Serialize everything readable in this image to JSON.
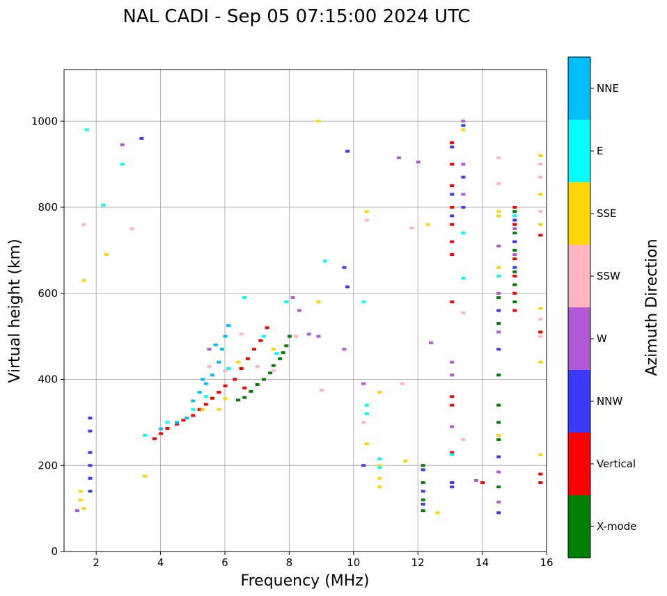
{
  "chart_data": {
    "type": "scatter",
    "title": "NAL CADI - Sep 05 07:15:00 2024 UTC",
    "xlabel": "Frequency (MHz)",
    "ylabel": "Virtual height (km)",
    "xlim": [
      1,
      16
    ],
    "ylim": [
      0,
      1120
    ],
    "xticks": [
      2,
      4,
      6,
      8,
      10,
      12,
      14,
      16
    ],
    "yticks": [
      0,
      200,
      400,
      600,
      800,
      1000
    ],
    "grid": true,
    "colorbar": {
      "label": "Azimuth Direction",
      "categories": [
        {
          "name": "X-mode",
          "color": "#008000"
        },
        {
          "name": "Vertical",
          "color": "#ff0000"
        },
        {
          "name": "NNW",
          "color": "#3a3aff"
        },
        {
          "name": "W",
          "color": "#b25ad6"
        },
        {
          "name": "SSW",
          "color": "#ffb6c1"
        },
        {
          "name": "SSE",
          "color": "#ffd700"
        },
        {
          "name": "E",
          "color": "#00ffff"
        },
        {
          "name": "NNE",
          "color": "#00bfff"
        }
      ]
    },
    "series": [
      {
        "name": "X-mode",
        "points": [
          [
            6.4,
            352
          ],
          [
            6.6,
            358
          ],
          [
            6.8,
            372
          ],
          [
            7.0,
            388
          ],
          [
            7.2,
            400
          ],
          [
            7.4,
            415
          ],
          [
            7.5,
            432
          ],
          [
            7.7,
            448
          ],
          [
            7.8,
            462
          ],
          [
            7.9,
            478
          ],
          [
            8.0,
            500
          ],
          [
            12.15,
            200
          ],
          [
            12.15,
            160
          ],
          [
            12.15,
            120
          ],
          [
            12.15,
            95
          ],
          [
            14.5,
            590
          ],
          [
            14.5,
            530
          ],
          [
            14.5,
            410
          ],
          [
            14.5,
            340
          ],
          [
            14.5,
            300
          ],
          [
            14.5,
            260
          ],
          [
            14.5,
            150
          ],
          [
            15.0,
            790
          ],
          [
            15.0,
            740
          ],
          [
            15.0,
            700
          ],
          [
            15.0,
            650
          ],
          [
            15.0,
            620
          ],
          [
            15.0,
            580
          ]
        ]
      },
      {
        "name": "Vertical",
        "points": [
          [
            3.8,
            262
          ],
          [
            4.0,
            274
          ],
          [
            4.2,
            286
          ],
          [
            4.5,
            296
          ],
          [
            4.7,
            305
          ],
          [
            5.0,
            316
          ],
          [
            5.2,
            330
          ],
          [
            5.4,
            342
          ],
          [
            5.6,
            356
          ],
          [
            5.8,
            370
          ],
          [
            6.0,
            385
          ],
          [
            6.3,
            400
          ],
          [
            6.5,
            425
          ],
          [
            6.7,
            448
          ],
          [
            6.9,
            470
          ],
          [
            7.1,
            490
          ],
          [
            6.6,
            380
          ],
          [
            7.3,
            520
          ],
          [
            13.05,
            950
          ],
          [
            13.05,
            900
          ],
          [
            13.05,
            850
          ],
          [
            13.05,
            800
          ],
          [
            13.05,
            760
          ],
          [
            13.05,
            720
          ],
          [
            13.05,
            690
          ],
          [
            13.05,
            580
          ],
          [
            13.05,
            360
          ],
          [
            13.05,
            340
          ],
          [
            13.05,
            230
          ],
          [
            13.05,
            160
          ],
          [
            14.0,
            160
          ],
          [
            15.0,
            800
          ],
          [
            15.0,
            760
          ],
          [
            15.0,
            720
          ],
          [
            15.0,
            680
          ],
          [
            15.0,
            640
          ],
          [
            15.0,
            600
          ],
          [
            15.0,
            560
          ],
          [
            15.8,
            735
          ],
          [
            15.8,
            510
          ],
          [
            15.8,
            180
          ],
          [
            15.8,
            160
          ]
        ]
      },
      {
        "name": "NNW",
        "points": [
          [
            1.8,
            310
          ],
          [
            1.8,
            280
          ],
          [
            1.8,
            230
          ],
          [
            1.8,
            200
          ],
          [
            1.8,
            170
          ],
          [
            1.8,
            140
          ],
          [
            3.4,
            960
          ],
          [
            9.8,
            930
          ],
          [
            9.7,
            660
          ],
          [
            9.8,
            615
          ],
          [
            10.3,
            200
          ],
          [
            12.15,
            190
          ],
          [
            12.15,
            140
          ],
          [
            12.15,
            110
          ],
          [
            13.05,
            940
          ],
          [
            13.05,
            830
          ],
          [
            13.05,
            780
          ],
          [
            13.05,
            160
          ],
          [
            13.05,
            150
          ],
          [
            13.4,
            990
          ],
          [
            13.4,
            870
          ],
          [
            13.4,
            800
          ],
          [
            14.5,
            560
          ],
          [
            14.5,
            470
          ],
          [
            14.5,
            220
          ],
          [
            14.5,
            90
          ],
          [
            15.0,
            770
          ],
          [
            15.0,
            720
          ],
          [
            15.0,
            660
          ]
        ]
      },
      {
        "name": "W",
        "points": [
          [
            1.4,
            95
          ],
          [
            2.8,
            945
          ],
          [
            5.5,
            470
          ],
          [
            8.1,
            590
          ],
          [
            8.3,
            560
          ],
          [
            8.6,
            505
          ],
          [
            8.9,
            500
          ],
          [
            9.7,
            470
          ],
          [
            10.3,
            390
          ],
          [
            11.4,
            915
          ],
          [
            12.0,
            905
          ],
          [
            12.4,
            485
          ],
          [
            13.05,
            440
          ],
          [
            13.05,
            410
          ],
          [
            13.05,
            290
          ],
          [
            13.4,
            1000
          ],
          [
            13.4,
            900
          ],
          [
            13.4,
            830
          ],
          [
            13.8,
            165
          ],
          [
            14.5,
            710
          ],
          [
            14.5,
            600
          ],
          [
            14.5,
            510
          ],
          [
            14.5,
            185
          ],
          [
            14.5,
            115
          ],
          [
            15.0,
            750
          ],
          [
            15.0,
            690
          ]
        ]
      },
      {
        "name": "SSW",
        "points": [
          [
            1.6,
            760
          ],
          [
            3.1,
            750
          ],
          [
            5.5,
            430
          ],
          [
            6.0,
            420
          ],
          [
            6.5,
            505
          ],
          [
            7.0,
            430
          ],
          [
            7.5,
            420
          ],
          [
            8.2,
            500
          ],
          [
            9.0,
            375
          ],
          [
            10.3,
            300
          ],
          [
            10.4,
            770
          ],
          [
            11.5,
            390
          ],
          [
            11.8,
            752
          ],
          [
            13.4,
            555
          ],
          [
            13.4,
            260
          ],
          [
            14.5,
            855
          ],
          [
            14.5,
            915
          ],
          [
            15.8,
            920
          ],
          [
            15.8,
            900
          ],
          [
            15.8,
            870
          ],
          [
            15.8,
            830
          ],
          [
            15.8,
            790
          ],
          [
            15.8,
            540
          ],
          [
            15.8,
            500
          ]
        ]
      },
      {
        "name": "SSE",
        "points": [
          [
            1.5,
            140
          ],
          [
            1.5,
            120
          ],
          [
            1.6,
            100
          ],
          [
            1.6,
            630
          ],
          [
            2.3,
            690
          ],
          [
            3.5,
            175
          ],
          [
            5.3,
            330
          ],
          [
            5.8,
            330
          ],
          [
            6.0,
            355
          ],
          [
            6.4,
            440
          ],
          [
            7.5,
            470
          ],
          [
            8.9,
            1000
          ],
          [
            8.9,
            580
          ],
          [
            10.4,
            790
          ],
          [
            10.4,
            250
          ],
          [
            10.8,
            200
          ],
          [
            10.8,
            170
          ],
          [
            10.8,
            150
          ],
          [
            10.8,
            370
          ],
          [
            11.6,
            210
          ],
          [
            12.3,
            760
          ],
          [
            12.6,
            90
          ],
          [
            13.4,
            980
          ],
          [
            14.5,
            790
          ],
          [
            14.5,
            780
          ],
          [
            14.5,
            660
          ],
          [
            14.5,
            270
          ],
          [
            15.8,
            920
          ],
          [
            15.8,
            830
          ],
          [
            15.8,
            760
          ],
          [
            15.8,
            565
          ],
          [
            15.8,
            440
          ],
          [
            15.8,
            225
          ]
        ]
      },
      {
        "name": "E",
        "points": [
          [
            1.7,
            980
          ],
          [
            2.2,
            805
          ],
          [
            2.8,
            900
          ],
          [
            3.5,
            270
          ],
          [
            4.2,
            300
          ],
          [
            5.0,
            330
          ],
          [
            5.4,
            360
          ],
          [
            6.1,
            425
          ],
          [
            6.6,
            590
          ],
          [
            7.2,
            500
          ],
          [
            7.6,
            460
          ],
          [
            7.9,
            580
          ],
          [
            9.1,
            675
          ],
          [
            10.3,
            580
          ],
          [
            10.4,
            340
          ],
          [
            10.4,
            320
          ],
          [
            10.8,
            215
          ],
          [
            10.8,
            195
          ],
          [
            13.05,
            225
          ],
          [
            13.4,
            635
          ],
          [
            13.4,
            740
          ],
          [
            14.5,
            640
          ],
          [
            15.0,
            780
          ]
        ]
      },
      {
        "name": "NNE",
        "points": [
          [
            4.0,
            285
          ],
          [
            4.5,
            300
          ],
          [
            4.8,
            310
          ],
          [
            5.0,
            350
          ],
          [
            5.2,
            370
          ],
          [
            5.4,
            390
          ],
          [
            5.6,
            410
          ],
          [
            5.8,
            440
          ],
          [
            5.9,
            470
          ],
          [
            6.0,
            500
          ],
          [
            6.1,
            525
          ],
          [
            5.3,
            400
          ],
          [
            5.7,
            480
          ]
        ]
      }
    ]
  }
}
